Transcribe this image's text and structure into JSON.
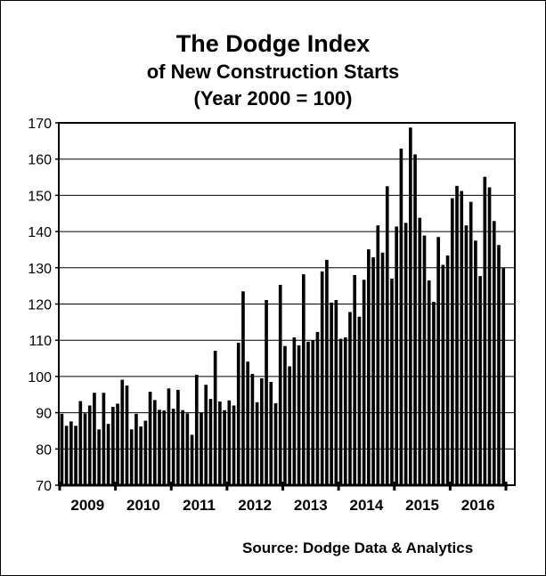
{
  "chart_data": {
    "type": "bar",
    "title": "The Dodge Index",
    "subtitle": "of New Construction Starts",
    "subtitle2": "(Year 2000 = 100)",
    "xlabel": "",
    "ylabel": "",
    "ylim": [
      70,
      170
    ],
    "yticks": [
      70,
      80,
      90,
      100,
      110,
      120,
      130,
      140,
      150,
      160,
      170
    ],
    "grid": true,
    "years": [
      "2009",
      "2010",
      "2011",
      "2012",
      "2013",
      "2014",
      "2015",
      "2016"
    ],
    "frequency": "monthly",
    "values": [
      89.7,
      86.4,
      87.6,
      86.4,
      93.2,
      89.8,
      92.0,
      95.5,
      85.4,
      95.5,
      86.9,
      91.6,
      92.5,
      99.1,
      97.5,
      85.4,
      89.7,
      86.2,
      87.8,
      95.8,
      93.5,
      90.8,
      90.6,
      96.7,
      91.1,
      96.3,
      90.7,
      89.8,
      83.9,
      100.5,
      90.0,
      97.7,
      93.8,
      107.1,
      93.1,
      90.7,
      93.4,
      92.0,
      109.3,
      123.5,
      104.1,
      100.7,
      92.9,
      99.5,
      121.1,
      98.5,
      92.6,
      125.3,
      108.4,
      102.8,
      110.8,
      108.6,
      128.2,
      109.6,
      110.0,
      112.3,
      129.0,
      132.2,
      120.4,
      121.1,
      110.4,
      110.8,
      117.8,
      128.0,
      116.5,
      126.7,
      135.1,
      132.9,
      141.7,
      134.2,
      152.5,
      127.0,
      141.4,
      162.9,
      142.4,
      168.7,
      161.3,
      143.8,
      138.9,
      126.5,
      120.6,
      138.5,
      130.8,
      133.4,
      149.2,
      152.6,
      151.2,
      141.7,
      148.2,
      137.5,
      127.7,
      155.1,
      152.2,
      142.9,
      136.3,
      129.9
    ],
    "bar_color": "#000000",
    "source": "Source:  Dodge Data & Analytics"
  }
}
